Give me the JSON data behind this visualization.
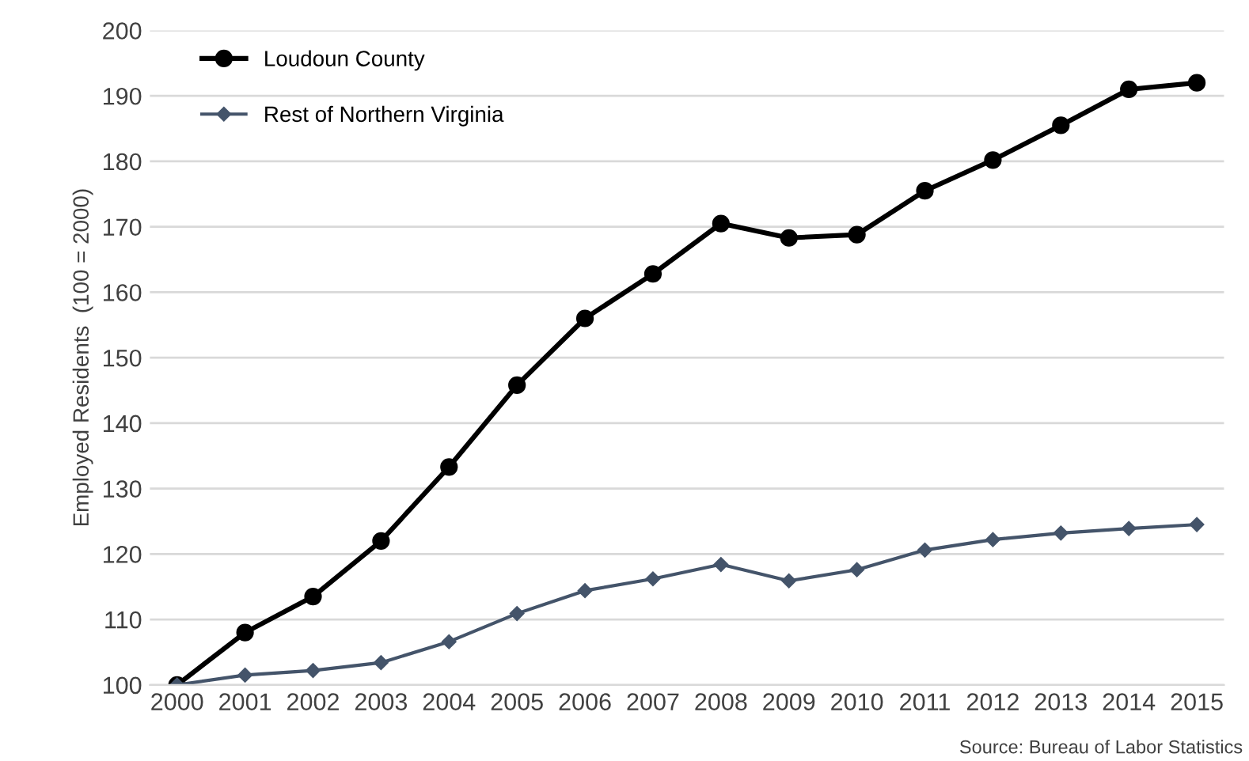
{
  "chart_data": {
    "type": "line",
    "ylabel": "Employed Residents  (100 = 2000)",
    "categories": [
      "2000",
      "2001",
      "2002",
      "2003",
      "2004",
      "2005",
      "2006",
      "2007",
      "2008",
      "2009",
      "2010",
      "2011",
      "2012",
      "2013",
      "2014",
      "2015"
    ],
    "series": [
      {
        "name": "Loudoun County",
        "color": "#000000",
        "marker": "circle",
        "values": [
          100,
          108,
          113.5,
          122,
          133.3,
          145.8,
          156,
          162.8,
          170.5,
          168.3,
          168.8,
          175.5,
          180.2,
          185.5,
          191,
          192
        ]
      },
      {
        "name": "Rest of Northern Virginia",
        "color": "#44546a",
        "marker": "diamond",
        "values": [
          100,
          101.5,
          102.2,
          103.4,
          106.6,
          110.9,
          114.4,
          116.2,
          118.4,
          115.9,
          117.6,
          120.6,
          122.2,
          123.2,
          123.9,
          124.5
        ]
      }
    ],
    "ylim": [
      100,
      200
    ],
    "yticks": [
      100,
      110,
      120,
      130,
      140,
      150,
      160,
      170,
      180,
      190,
      200
    ],
    "grid": "y",
    "legend": "top left",
    "annotations": [
      "Source: Bureau of Labor Statistics"
    ]
  }
}
